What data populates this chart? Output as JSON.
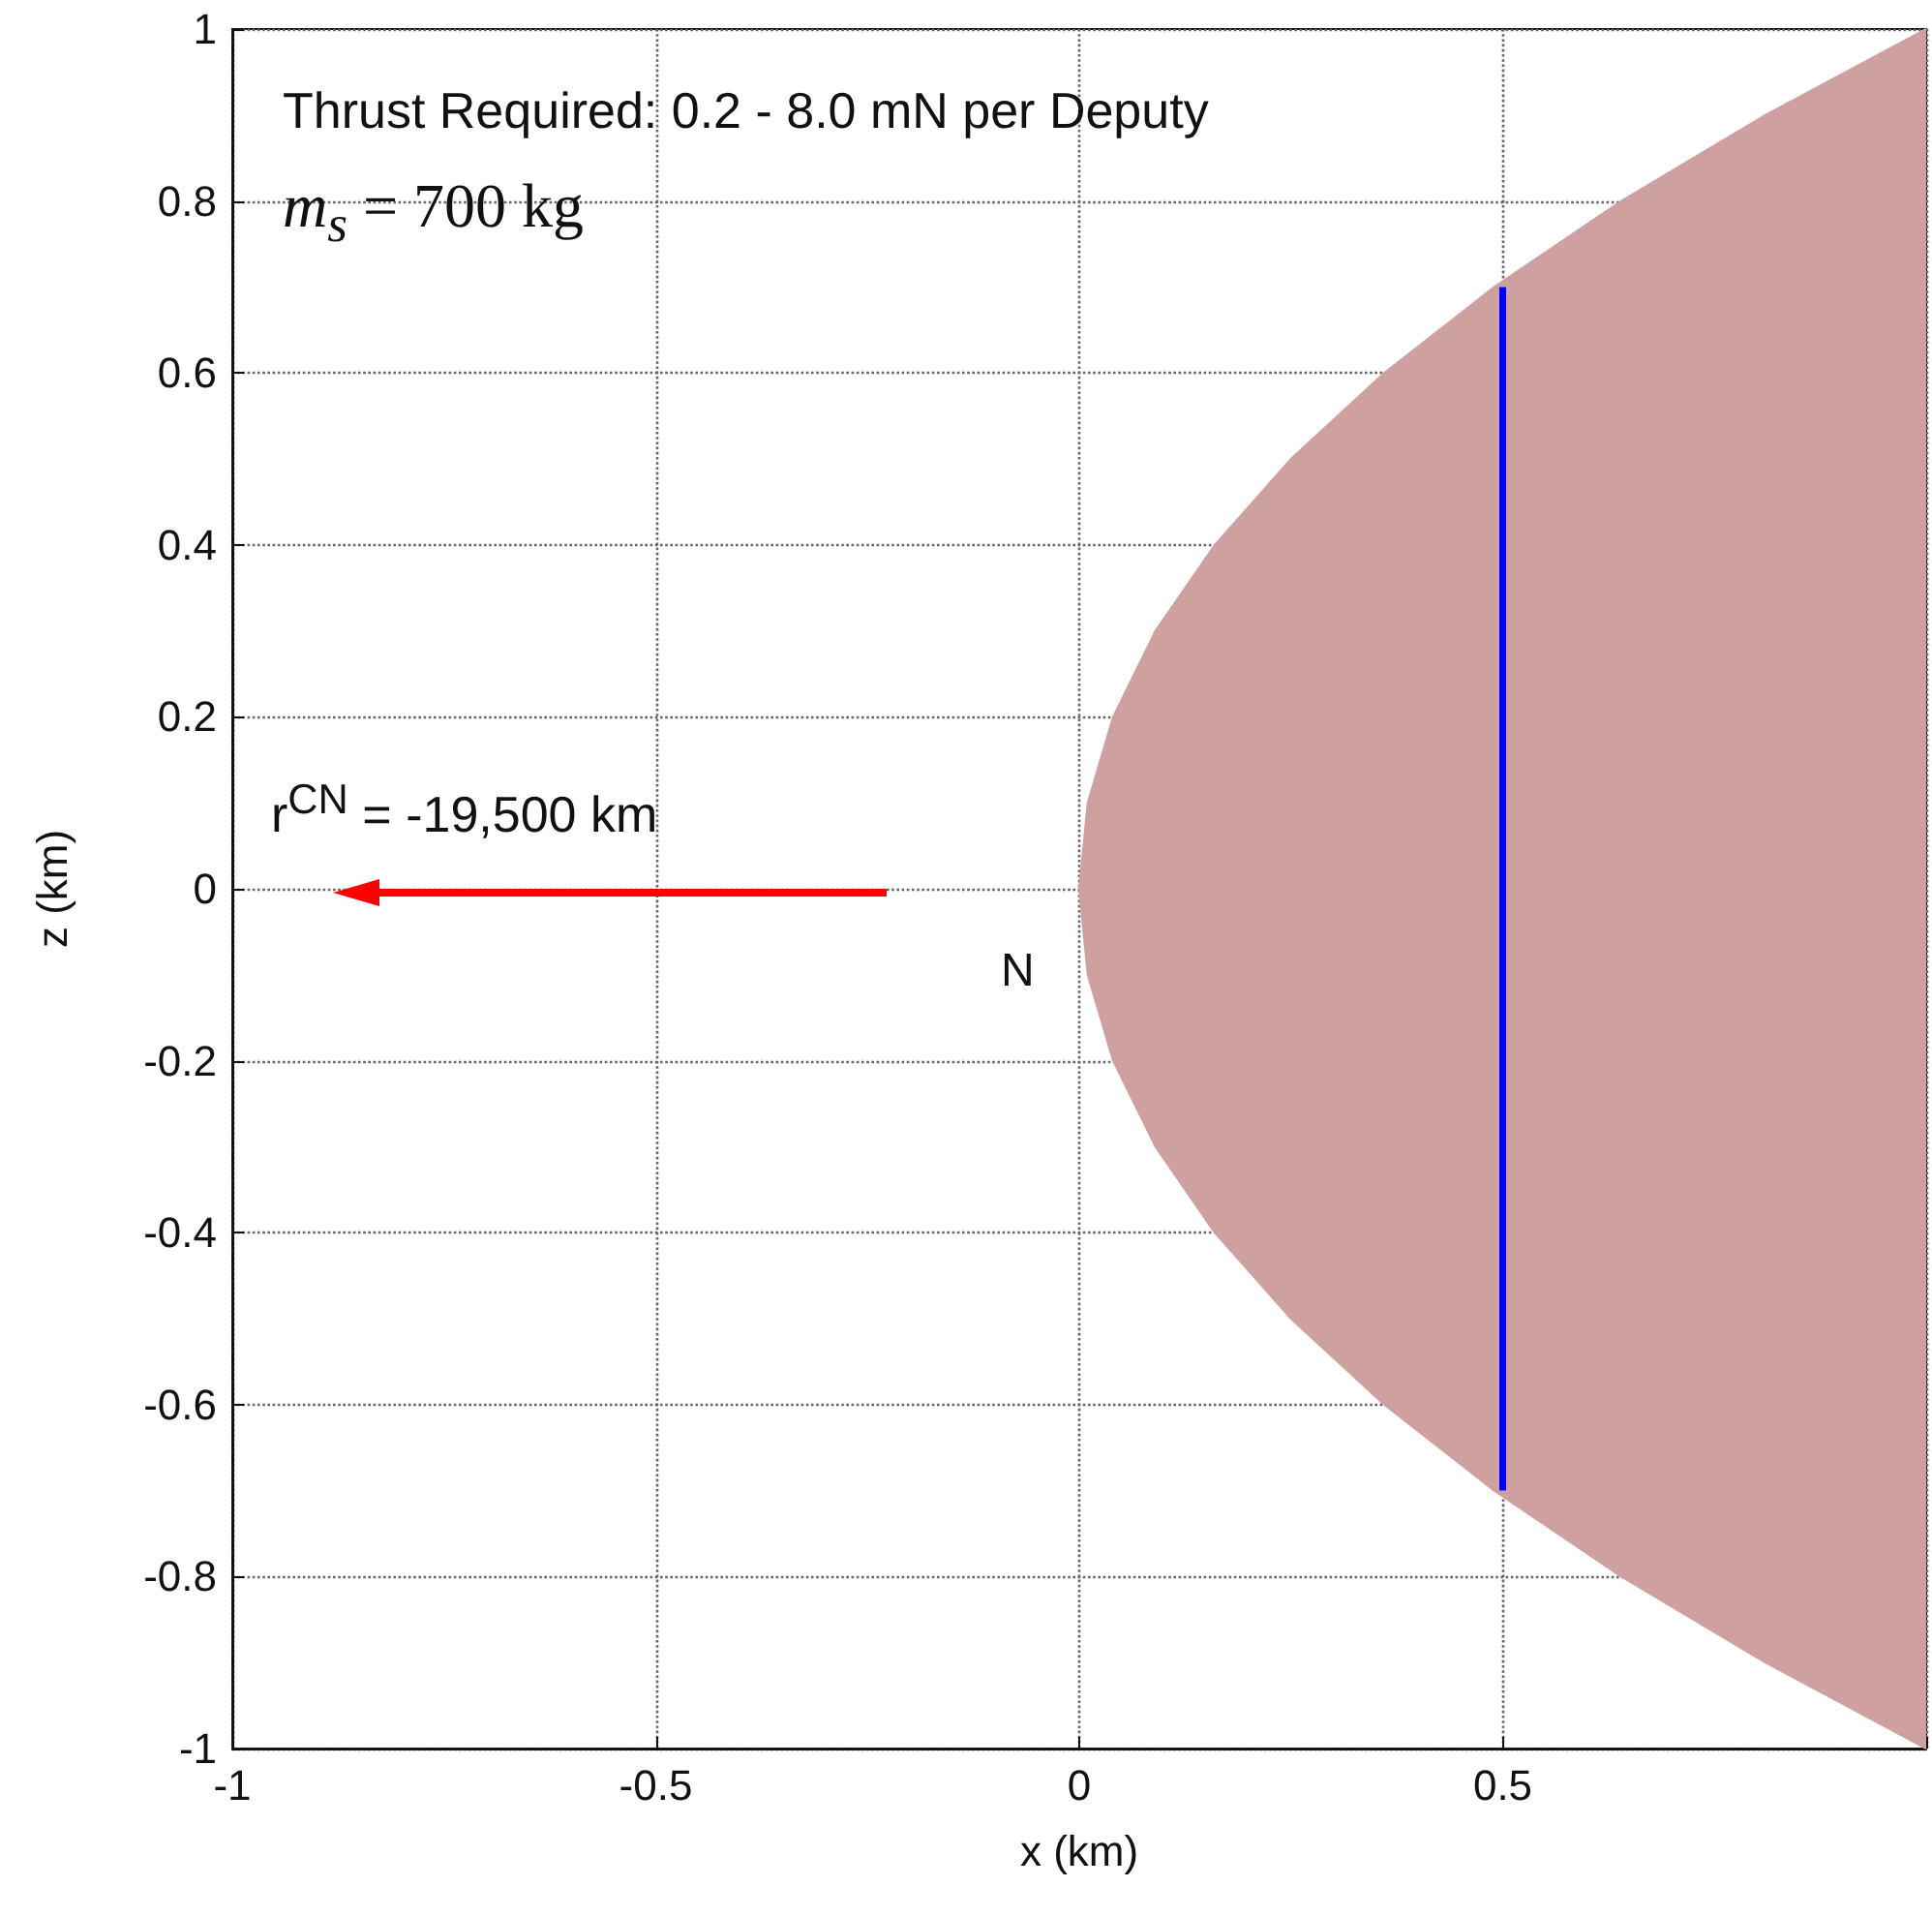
{
  "chart_data": {
    "type": "area",
    "xlabel": "x (km)",
    "ylabel": "z (km)",
    "annotations": [
      "Thrust Required: 0.2 - 8.0 mN per Deputy",
      "m$_{s}$ = 700 kg",
      "r$^{CN}$ = -19,500 km",
      "N"
    ],
    "series": [
      {
        "color": "#cfa0a0",
        "x": [
          0,
          0.01,
          0.04,
          0.09,
          0.16,
          0.25,
          0.36,
          0.49,
          0.64,
          0.81,
          1.0
        ],
        "values": [
          0,
          0.1,
          0.2,
          0.3,
          0.4,
          0.5,
          0.6,
          0.7,
          0.8,
          0.9,
          1.0
        ]
      },
      {
        "type": "area",
        "color": "#cfa0a0",
        "x": [
          0,
          0.01,
          0.04,
          0.09,
          0.16,
          0.25,
          0.36,
          0.49,
          0.64,
          0.81,
          1.0
        ],
        "values": [
          0,
          -0.1,
          -0.2,
          -0.3,
          -0.4,
          -0.5,
          -0.6,
          -0.7,
          -0.8,
          -0.9,
          -1.0
        ]
      },
      {
        "type": "line",
        "color": "#0000ff",
        "x": [
          0.5,
          0.5
        ],
        "values": [
          -0.7,
          0.7
        ]
      }
    ],
    "xlim": [
      -1,
      1
    ],
    "xticks": [
      -1,
      -0.5,
      0,
      0.5,
      {
        "value": 1,
        "label": null
      }
    ],
    "ylim": [
      -1,
      1
    ],
    "yticks": [
      -1,
      -0.8,
      -0.6,
      -0.4,
      -0.2,
      0,
      0.2,
      0.4,
      0.6,
      0.8,
      1
    ],
    "grid": true
  }
}
